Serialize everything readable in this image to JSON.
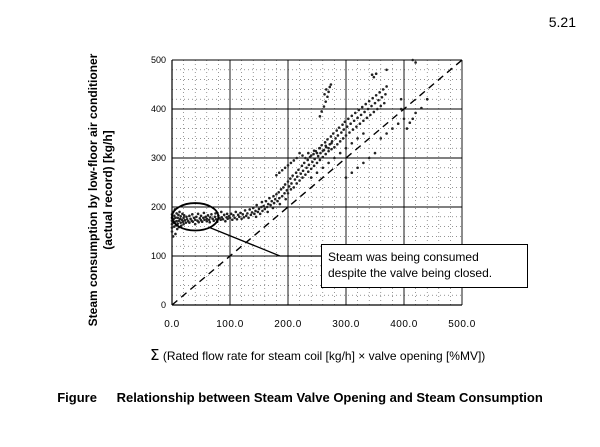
{
  "page_number": "5.21",
  "caption": {
    "label": "Figure",
    "text": "Relationship between Steam Valve Opening and Steam Consumption"
  },
  "chart_data": {
    "type": "scatter",
    "ylabel": "Steam consumption by low-floor air conditioner (actual record) [kg/h]",
    "xlabel_symbol": "Σ",
    "xlabel": "(Rated flow rate for steam coil [kg/h] × valve opening [%MV])",
    "xlim": [
      0,
      500
    ],
    "ylim": [
      0,
      500
    ],
    "x_ticks": [
      {
        "value": 0,
        "label": "0.0"
      },
      {
        "value": 100,
        "label": "100.0"
      },
      {
        "value": 200,
        "label": "200.0"
      },
      {
        "value": 300,
        "label": "300.0"
      },
      {
        "value": 400,
        "label": "400.0"
      },
      {
        "value": 500,
        "label": "500.0"
      }
    ],
    "y_ticks": [
      {
        "value": 0,
        "label": "0"
      },
      {
        "value": 100,
        "label": "100"
      },
      {
        "value": 200,
        "label": "200"
      },
      {
        "value": 300,
        "label": "300"
      },
      {
        "value": 400,
        "label": "400"
      },
      {
        "value": 500,
        "label": "500"
      }
    ],
    "reference_line": {
      "style": "dashed",
      "points": [
        [
          0,
          0
        ],
        [
          500,
          500
        ]
      ]
    },
    "annotation": {
      "text_line1": "Steam was being consumed",
      "text_line2": "despite the valve being closed.",
      "ellipse_center": [
        40,
        180
      ],
      "ellipse_radius": [
        40,
        28
      ]
    },
    "points": [
      [
        0,
        165
      ],
      [
        0,
        172
      ],
      [
        0,
        178
      ],
      [
        0,
        185
      ],
      [
        0,
        150
      ],
      [
        0,
        158
      ],
      [
        2,
        190
      ],
      [
        2,
        140
      ],
      [
        3,
        168
      ],
      [
        3,
        176
      ],
      [
        4,
        182
      ],
      [
        4,
        160
      ],
      [
        5,
        170
      ],
      [
        5,
        195
      ],
      [
        6,
        145
      ],
      [
        6,
        178
      ],
      [
        7,
        163
      ],
      [
        8,
        187
      ],
      [
        8,
        171
      ],
      [
        9,
        155
      ],
      [
        10,
        178
      ],
      [
        10,
        166
      ],
      [
        11,
        184
      ],
      [
        12,
        172
      ],
      [
        12,
        159
      ],
      [
        13,
        190
      ],
      [
        14,
        176
      ],
      [
        15,
        168
      ],
      [
        15,
        181
      ],
      [
        16,
        162
      ],
      [
        17,
        174
      ],
      [
        18,
        186
      ],
      [
        19,
        170
      ],
      [
        20,
        178
      ],
      [
        20,
        165
      ],
      [
        21,
        183
      ],
      [
        22,
        173
      ],
      [
        24,
        168
      ],
      [
        25,
        180
      ],
      [
        26,
        175
      ],
      [
        28,
        171
      ],
      [
        30,
        182
      ],
      [
        30,
        168
      ],
      [
        32,
        176
      ],
      [
        34,
        172
      ],
      [
        35,
        185
      ],
      [
        36,
        170
      ],
      [
        38,
        178
      ],
      [
        40,
        174
      ],
      [
        40,
        165
      ],
      [
        42,
        180
      ],
      [
        44,
        172
      ],
      [
        45,
        186
      ],
      [
        46,
        169
      ],
      [
        48,
        177
      ],
      [
        50,
        173
      ],
      [
        50,
        182
      ],
      [
        52,
        170
      ],
      [
        54,
        178
      ],
      [
        55,
        188
      ],
      [
        56,
        174
      ],
      [
        58,
        180
      ],
      [
        60,
        171
      ],
      [
        60,
        176
      ],
      [
        62,
        183
      ],
      [
        64,
        174
      ],
      [
        65,
        169
      ],
      [
        66,
        179
      ],
      [
        68,
        185
      ],
      [
        70,
        176
      ],
      [
        72,
        172
      ],
      [
        74,
        180
      ],
      [
        75,
        187
      ],
      [
        76,
        175
      ],
      [
        78,
        170
      ],
      [
        80,
        182
      ],
      [
        82,
        177
      ],
      [
        84,
        174
      ],
      [
        85,
        190
      ],
      [
        86,
        179
      ],
      [
        88,
        175
      ],
      [
        90,
        184
      ],
      [
        92,
        171
      ],
      [
        94,
        179
      ],
      [
        95,
        186
      ],
      [
        96,
        176
      ],
      [
        98,
        181
      ],
      [
        100,
        178
      ],
      [
        102,
        186
      ],
      [
        104,
        174
      ],
      [
        106,
        183
      ],
      [
        108,
        178
      ],
      [
        110,
        190
      ],
      [
        112,
        175
      ],
      [
        114,
        184
      ],
      [
        116,
        180
      ],
      [
        118,
        188
      ],
      [
        120,
        176
      ],
      [
        122,
        185
      ],
      [
        124,
        179
      ],
      [
        126,
        193
      ],
      [
        128,
        182
      ],
      [
        130,
        187
      ],
      [
        132,
        178
      ],
      [
        134,
        195
      ],
      [
        136,
        184
      ],
      [
        138,
        189
      ],
      [
        140,
        198
      ],
      [
        142,
        186
      ],
      [
        144,
        192
      ],
      [
        145,
        180
      ],
      [
        146,
        204
      ],
      [
        148,
        190
      ],
      [
        150,
        196
      ],
      [
        152,
        186
      ],
      [
        154,
        200
      ],
      [
        155,
        210
      ],
      [
        156,
        192
      ],
      [
        158,
        202
      ],
      [
        160,
        196
      ],
      [
        162,
        212
      ],
      [
        164,
        200
      ],
      [
        165,
        190
      ],
      [
        166,
        206
      ],
      [
        168,
        218
      ],
      [
        170,
        204
      ],
      [
        172,
        212
      ],
      [
        174,
        198
      ],
      [
        175,
        222
      ],
      [
        176,
        208
      ],
      [
        178,
        216
      ],
      [
        180,
        226
      ],
      [
        182,
        212
      ],
      [
        184,
        230
      ],
      [
        185,
        218
      ],
      [
        186,
        206
      ],
      [
        188,
        236
      ],
      [
        190,
        222
      ],
      [
        192,
        240
      ],
      [
        194,
        228
      ],
      [
        195,
        246
      ],
      [
        196,
        216
      ],
      [
        198,
        234
      ],
      [
        200,
        252
      ],
      [
        200,
        228
      ],
      [
        202,
        242
      ],
      [
        204,
        258
      ],
      [
        205,
        236
      ],
      [
        206,
        248
      ],
      [
        208,
        264
      ],
      [
        210,
        240
      ],
      [
        212,
        256
      ],
      [
        214,
        270
      ],
      [
        215,
        248
      ],
      [
        216,
        262
      ],
      [
        218,
        276
      ],
      [
        220,
        254
      ],
      [
        222,
        268
      ],
      [
        224,
        284
      ],
      [
        225,
        260
      ],
      [
        226,
        274
      ],
      [
        228,
        290
      ],
      [
        230,
        266
      ],
      [
        232,
        280
      ],
      [
        234,
        296
      ],
      [
        235,
        272
      ],
      [
        236,
        286
      ],
      [
        238,
        302
      ],
      [
        240,
        278
      ],
      [
        242,
        292
      ],
      [
        244,
        308
      ],
      [
        245,
        284
      ],
      [
        246,
        298
      ],
      [
        248,
        314
      ],
      [
        250,
        290
      ],
      [
        252,
        304
      ],
      [
        254,
        320
      ],
      [
        255,
        296
      ],
      [
        256,
        310
      ],
      [
        258,
        326
      ],
      [
        260,
        302
      ],
      [
        262,
        316
      ],
      [
        264,
        332
      ],
      [
        265,
        308
      ],
      [
        266,
        322
      ],
      [
        268,
        338
      ],
      [
        270,
        314
      ],
      [
        272,
        328
      ],
      [
        274,
        344
      ],
      [
        275,
        318
      ],
      [
        276,
        334
      ],
      [
        278,
        350
      ],
      [
        280,
        322
      ],
      [
        282,
        340
      ],
      [
        284,
        356
      ],
      [
        285,
        328
      ],
      [
        286,
        346
      ],
      [
        288,
        362
      ],
      [
        290,
        334
      ],
      [
        292,
        352
      ],
      [
        294,
        368
      ],
      [
        295,
        340
      ],
      [
        296,
        358
      ],
      [
        298,
        374
      ],
      [
        300,
        346
      ],
      [
        302,
        364
      ],
      [
        304,
        380
      ],
      [
        306,
        352
      ],
      [
        308,
        370
      ],
      [
        310,
        386
      ],
      [
        312,
        358
      ],
      [
        314,
        376
      ],
      [
        316,
        392
      ],
      [
        318,
        364
      ],
      [
        320,
        382
      ],
      [
        322,
        398
      ],
      [
        324,
        370
      ],
      [
        326,
        388
      ],
      [
        328,
        404
      ],
      [
        330,
        376
      ],
      [
        332,
        394
      ],
      [
        334,
        410
      ],
      [
        336,
        382
      ],
      [
        338,
        400
      ],
      [
        340,
        416
      ],
      [
        342,
        388
      ],
      [
        344,
        406
      ],
      [
        346,
        422
      ],
      [
        348,
        394
      ],
      [
        350,
        412
      ],
      [
        352,
        428
      ],
      [
        354,
        400
      ],
      [
        356,
        418
      ],
      [
        358,
        434
      ],
      [
        360,
        406
      ],
      [
        362,
        424
      ],
      [
        364,
        440
      ],
      [
        366,
        412
      ],
      [
        368,
        430
      ],
      [
        370,
        446
      ],
      [
        230,
        300
      ],
      [
        235,
        310
      ],
      [
        240,
        305
      ],
      [
        245,
        315
      ],
      [
        250,
        310
      ],
      [
        255,
        320
      ],
      [
        260,
        315
      ],
      [
        265,
        325
      ],
      [
        270,
        320
      ],
      [
        275,
        330
      ],
      [
        215,
        300
      ],
      [
        220,
        310
      ],
      [
        225,
        305
      ],
      [
        210,
        295
      ],
      [
        205,
        290
      ],
      [
        200,
        285
      ],
      [
        195,
        280
      ],
      [
        190,
        275
      ],
      [
        185,
        270
      ],
      [
        180,
        265
      ],
      [
        240,
        260
      ],
      [
        250,
        270
      ],
      [
        260,
        280
      ],
      [
        270,
        290
      ],
      [
        280,
        300
      ],
      [
        290,
        310
      ],
      [
        300,
        320
      ],
      [
        310,
        330
      ],
      [
        320,
        340
      ],
      [
        330,
        350
      ],
      [
        255,
        385
      ],
      [
        258,
        395
      ],
      [
        262,
        405
      ],
      [
        265,
        415
      ],
      [
        268,
        425
      ],
      [
        270,
        435
      ],
      [
        272,
        445
      ],
      [
        274,
        450
      ],
      [
        266,
        440
      ],
      [
        263,
        430
      ],
      [
        345,
        470
      ],
      [
        348,
        465
      ],
      [
        352,
        472
      ],
      [
        370,
        480
      ],
      [
        395,
        400
      ],
      [
        405,
        360
      ],
      [
        410,
        372
      ],
      [
        415,
        380
      ],
      [
        420,
        392
      ],
      [
        430,
        402
      ],
      [
        440,
        420
      ],
      [
        395,
        420
      ],
      [
        415,
        500
      ],
      [
        420,
        495
      ],
      [
        300,
        260
      ],
      [
        310,
        270
      ],
      [
        320,
        280
      ],
      [
        330,
        290
      ],
      [
        340,
        300
      ],
      [
        350,
        310
      ],
      [
        380,
        360
      ],
      [
        390,
        370
      ],
      [
        400,
        380
      ],
      [
        360,
        340
      ],
      [
        370,
        350
      ]
    ]
  }
}
